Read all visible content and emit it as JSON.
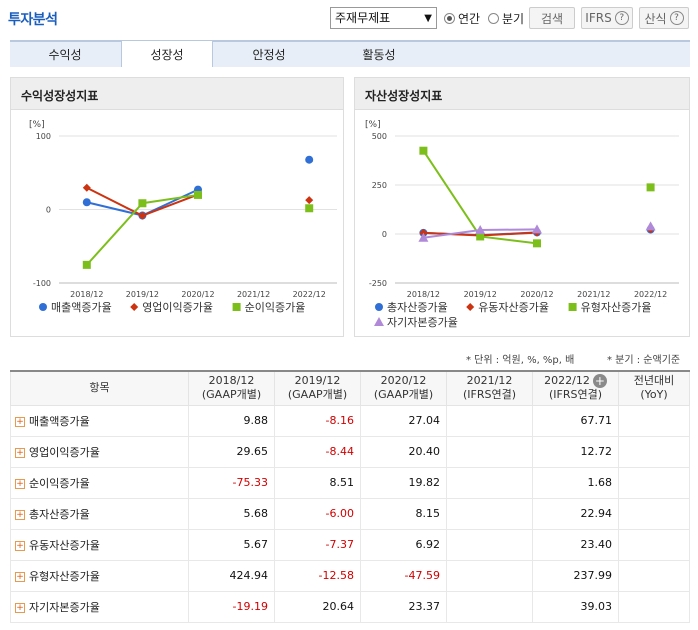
{
  "header": {
    "title": "투자분석",
    "select_value": "주재무제표",
    "radio_annual": "연간",
    "radio_quarter": "분기",
    "search_label": "검색",
    "ifrs_label": "IFRS",
    "formula_label": "산식"
  },
  "tabs": [
    "수익성",
    "성장성",
    "안정성",
    "활동성"
  ],
  "active_tab": 1,
  "left_chart_title": "수익성장성지표",
  "right_chart_title": "자산성장성지표",
  "notes": {
    "unit": "* 단위 : 억원, %, %p, 배",
    "quarter": "* 분기 : 순액기준"
  },
  "table": {
    "header_item": "항목",
    "columns": [
      {
        "year": "2018/12",
        "basis": "(GAAP개별)"
      },
      {
        "year": "2019/12",
        "basis": "(GAAP개별)"
      },
      {
        "year": "2020/12",
        "basis": "(GAAP개별)"
      },
      {
        "year": "2021/12",
        "basis": "(IFRS연결)"
      },
      {
        "year": "2022/12",
        "basis": "(IFRS연결)"
      }
    ],
    "yoy_line1": "전년대비",
    "yoy_line2": "(YoY)",
    "rows": [
      {
        "name": "매출액증가율",
        "values": [
          "9.88",
          "-8.16",
          "27.04",
          "",
          "67.71"
        ]
      },
      {
        "name": "영업이익증가율",
        "values": [
          "29.65",
          "-8.44",
          "20.40",
          "",
          "12.72"
        ]
      },
      {
        "name": "순이익증가율",
        "values": [
          "-75.33",
          "8.51",
          "19.82",
          "",
          "1.68"
        ]
      },
      {
        "name": "총자산증가율",
        "values": [
          "5.68",
          "-6.00",
          "8.15",
          "",
          "22.94"
        ]
      },
      {
        "name": "유동자산증가율",
        "values": [
          "5.67",
          "-7.37",
          "6.92",
          "",
          "23.40"
        ]
      },
      {
        "name": "유형자산증가율",
        "values": [
          "424.94",
          "-12.58",
          "-47.59",
          "",
          "237.99"
        ]
      },
      {
        "name": "자기자본증가율",
        "values": [
          "-19.19",
          "20.64",
          "23.37",
          "",
          "39.03"
        ]
      }
    ]
  },
  "chart_data": [
    {
      "type": "line",
      "title": "수익성장성지표",
      "ylabel": "[%]",
      "ylim": [
        -100,
        100
      ],
      "yticks": [
        100,
        0,
        -100
      ],
      "categories": [
        "2018/12",
        "2019/12",
        "2020/12",
        "2021/12",
        "2022/12"
      ],
      "legend_position": "bottom",
      "series": [
        {
          "name": "매출액증가율",
          "color": "#2f6fd6",
          "marker": "circle",
          "values": [
            9.88,
            -8.16,
            27.04,
            null,
            67.71
          ]
        },
        {
          "name": "영업이익증가율",
          "color": "#cc3311",
          "marker": "diamond",
          "values": [
            29.65,
            -8.44,
            20.4,
            null,
            12.72
          ]
        },
        {
          "name": "순이익증가율",
          "color": "#7cbf1a",
          "marker": "square",
          "values": [
            -75.33,
            8.51,
            19.82,
            null,
            1.68
          ]
        }
      ]
    },
    {
      "type": "line",
      "title": "자산성장성지표",
      "ylabel": "[%]",
      "ylim": [
        -250,
        500
      ],
      "yticks": [
        500,
        250,
        0,
        -250
      ],
      "categories": [
        "2018/12",
        "2019/12",
        "2020/12",
        "2021/12",
        "2022/12"
      ],
      "legend_position": "bottom",
      "series": [
        {
          "name": "총자산증가율",
          "color": "#2f6fd6",
          "marker": "circle",
          "values": [
            5.68,
            -6.0,
            8.15,
            null,
            22.94
          ]
        },
        {
          "name": "유동자산증가율",
          "color": "#cc3311",
          "marker": "diamond",
          "values": [
            5.67,
            -7.37,
            6.92,
            null,
            23.4
          ]
        },
        {
          "name": "유형자산증가율",
          "color": "#7cbf1a",
          "marker": "square",
          "values": [
            424.94,
            -12.58,
            -47.59,
            null,
            237.99
          ]
        },
        {
          "name": "자기자본증가율",
          "color": "#b08ad8",
          "marker": "triangle",
          "values": [
            -19.19,
            20.64,
            23.37,
            null,
            39.03
          ]
        }
      ]
    }
  ]
}
